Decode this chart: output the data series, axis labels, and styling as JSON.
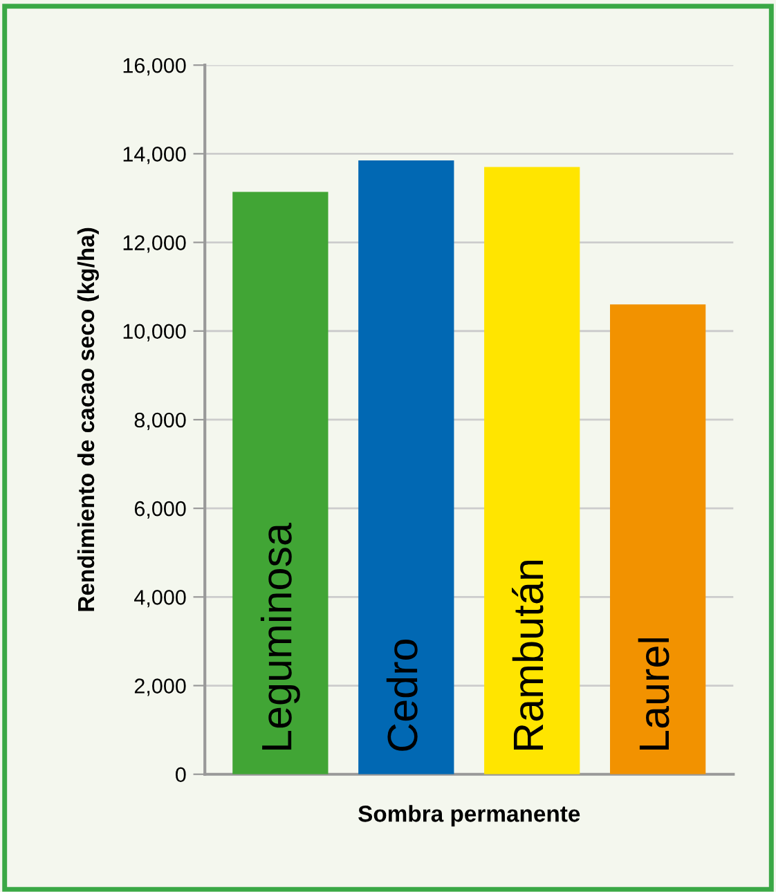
{
  "chart_data": {
    "type": "bar",
    "xlabel": "Sombra permanente",
    "ylabel": "Rendimiento de cacao seco (kg/ha)",
    "categories": [
      "Leguminosa",
      "Cedro",
      "Rambután",
      "Laurel"
    ],
    "values": [
      13140,
      13850,
      13700,
      10600
    ],
    "colors": [
      "#41a535",
      "#0168b3",
      "#ffe500",
      "#f29200"
    ],
    "ylim": [
      0,
      16000
    ],
    "yticks": [
      0,
      {
        "value": 2000,
        "label": "2,000"
      },
      {
        "value": 4000,
        "label": "4,000"
      },
      {
        "value": 6000,
        "label": "6,000"
      },
      {
        "value": 8000,
        "label": "8,000"
      },
      {
        "value": 10000,
        "label": "10,000"
      },
      {
        "value": 12000,
        "label": "12,000"
      },
      {
        "value": 14000,
        "label": "14,000"
      },
      {
        "value": 16000,
        "label": "16,000"
      }
    ],
    "grid": "y"
  }
}
